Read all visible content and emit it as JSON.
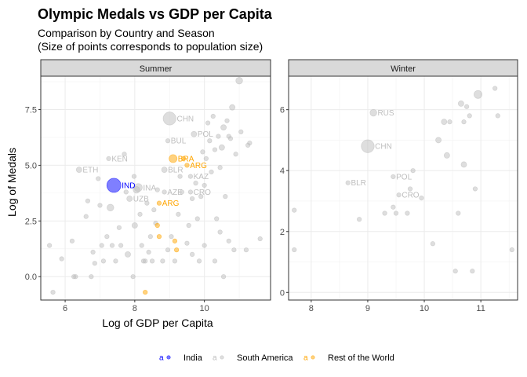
{
  "chart_data": {
    "type": "scatter",
    "title": "Olympic Medals vs GDP per Capita",
    "subtitle_lines": [
      "Comparison by Country and Season",
      "(Size of points corresponds to population size)"
    ],
    "xlabel": "Log of GDP per Capita",
    "ylabel": "Log of Medals",
    "legend_position": "bottom",
    "grid": true,
    "colors": {
      "India": "#0000ff",
      "South America": "#bebebe",
      "Rest of the World": "#ffa500"
    },
    "legend": [
      {
        "key": "a",
        "label": "India",
        "color": "#0000ff"
      },
      {
        "key": "a",
        "label": "South America",
        "color": "#bebebe"
      },
      {
        "key": "a",
        "label": "Rest of the World",
        "color": "#ffa500"
      }
    ],
    "panels": [
      {
        "name": "Summer",
        "xlim": [
          5.3,
          11.9
        ],
        "ylim": [
          -1.05,
          9.0
        ],
        "xticks": [
          6,
          8,
          10
        ],
        "yticks": [
          0.0,
          2.5,
          5.0,
          7.5
        ],
        "ytick_labels": [
          "0.0",
          "2.5",
          "5.0",
          "7.5"
        ],
        "points": [
          {
            "x": 5.65,
            "y": -0.7,
            "s": 2,
            "g": "South America"
          },
          {
            "x": 5.55,
            "y": 1.4,
            "s": 2,
            "g": "South America"
          },
          {
            "x": 5.9,
            "y": 0.8,
            "s": 2,
            "g": "South America"
          },
          {
            "x": 6.2,
            "y": 1.6,
            "s": 2,
            "g": "South America"
          },
          {
            "x": 6.25,
            "y": 0.0,
            "s": 2,
            "g": "South America"
          },
          {
            "x": 6.3,
            "y": 0.0,
            "s": 2,
            "g": "South America"
          },
          {
            "x": 6.4,
            "y": 4.8,
            "s": 3,
            "g": "South America",
            "label": "ETH"
          },
          {
            "x": 6.6,
            "y": 2.7,
            "s": 2,
            "g": "South America"
          },
          {
            "x": 6.65,
            "y": 3.4,
            "s": 2,
            "g": "South America"
          },
          {
            "x": 6.75,
            "y": 0.0,
            "s": 2,
            "g": "South America"
          },
          {
            "x": 6.8,
            "y": 1.1,
            "s": 2,
            "g": "South America"
          },
          {
            "x": 6.85,
            "y": 0.6,
            "s": 2,
            "g": "South America"
          },
          {
            "x": 6.95,
            "y": 4.4,
            "s": 2,
            "g": "South America"
          },
          {
            "x": 7.0,
            "y": 3.2,
            "s": 2,
            "g": "South America"
          },
          {
            "x": 7.05,
            "y": 1.4,
            "s": 2,
            "g": "South America"
          },
          {
            "x": 7.1,
            "y": 0.7,
            "s": 2,
            "g": "South America"
          },
          {
            "x": 7.2,
            "y": 1.8,
            "s": 2,
            "g": "South America"
          },
          {
            "x": 7.25,
            "y": 5.3,
            "s": 2,
            "g": "South America",
            "label": "KEN"
          },
          {
            "x": 7.3,
            "y": 3.1,
            "s": 4,
            "g": "South America"
          },
          {
            "x": 7.35,
            "y": 1.4,
            "s": 2,
            "g": "South America"
          },
          {
            "x": 7.4,
            "y": 4.1,
            "s": 10,
            "g": "India",
            "label": "IND"
          },
          {
            "x": 7.45,
            "y": 0.7,
            "s": 2,
            "g": "South America"
          },
          {
            "x": 7.55,
            "y": 2.2,
            "s": 2,
            "g": "South America"
          },
          {
            "x": 7.6,
            "y": 1.4,
            "s": 2,
            "g": "South America"
          },
          {
            "x": 7.7,
            "y": 5.5,
            "s": 2,
            "g": "South America"
          },
          {
            "x": 7.75,
            "y": 3.8,
            "s": 2,
            "g": "South America"
          },
          {
            "x": 7.8,
            "y": 1.0,
            "s": 3,
            "g": "South America"
          },
          {
            "x": 7.85,
            "y": 3.5,
            "s": 3,
            "g": "South America",
            "label": "UZB"
          },
          {
            "x": 7.95,
            "y": 0.0,
            "s": 2,
            "g": "South America"
          },
          {
            "x": 7.98,
            "y": 4.5,
            "s": 2,
            "g": "South America"
          },
          {
            "x": 8.0,
            "y": 2.3,
            "s": 3,
            "g": "South America"
          },
          {
            "x": 8.05,
            "y": 3.9,
            "s": 4,
            "g": "South America"
          },
          {
            "x": 8.1,
            "y": 4.0,
            "s": 5,
            "g": "South America",
            "label": "INA"
          },
          {
            "x": 8.15,
            "y": 2.8,
            "s": 2,
            "g": "South America"
          },
          {
            "x": 8.2,
            "y": 1.4,
            "s": 2,
            "g": "South America"
          },
          {
            "x": 8.25,
            "y": 0.7,
            "s": 2,
            "g": "South America"
          },
          {
            "x": 8.3,
            "y": -0.7,
            "s": 2,
            "g": "Rest of the World"
          },
          {
            "x": 8.3,
            "y": 0.7,
            "s": 2,
            "g": "South America"
          },
          {
            "x": 8.35,
            "y": 3.3,
            "s": 2,
            "g": "South America"
          },
          {
            "x": 8.4,
            "y": 1.1,
            "s": 2,
            "g": "South America"
          },
          {
            "x": 8.45,
            "y": 1.8,
            "s": 2,
            "g": "South America"
          },
          {
            "x": 8.5,
            "y": 0.7,
            "s": 2,
            "g": "South America"
          },
          {
            "x": 8.55,
            "y": 3.0,
            "s": 2,
            "g": "South America"
          },
          {
            "x": 8.6,
            "y": 2.4,
            "s": 2,
            "g": "South America"
          },
          {
            "x": 8.65,
            "y": 3.9,
            "s": 2,
            "g": "South America"
          },
          {
            "x": 8.65,
            "y": 2.3,
            "s": 2,
            "g": "Rest of the World"
          },
          {
            "x": 8.7,
            "y": 3.3,
            "s": 2,
            "g": "Rest of the World",
            "label": "ARG"
          },
          {
            "x": 8.7,
            "y": 1.8,
            "s": 2,
            "g": "Rest of the World"
          },
          {
            "x": 8.8,
            "y": 0.7,
            "s": 2,
            "g": "South America"
          },
          {
            "x": 8.85,
            "y": 3.8,
            "s": 2,
            "g": "South America",
            "label": "AZE"
          },
          {
            "x": 8.85,
            "y": 4.8,
            "s": 3,
            "g": "South America",
            "label": "BLR"
          },
          {
            "x": 8.95,
            "y": 1.2,
            "s": 2,
            "g": "South America"
          },
          {
            "x": 8.95,
            "y": 6.1,
            "s": 2,
            "g": "South America",
            "label": "BUL"
          },
          {
            "x": 9.0,
            "y": 7.1,
            "s": 9,
            "g": "South America",
            "label": "CHN"
          },
          {
            "x": 9.05,
            "y": 1.8,
            "s": 2,
            "g": "South America"
          },
          {
            "x": 9.1,
            "y": 5.3,
            "s": 5,
            "g": "Rest of the World",
            "label": "BRA"
          },
          {
            "x": 9.15,
            "y": 1.6,
            "s": 2,
            "g": "Rest of the World"
          },
          {
            "x": 9.15,
            "y": 0.7,
            "s": 2,
            "g": "South America"
          },
          {
            "x": 9.2,
            "y": 1.2,
            "s": 2,
            "g": "Rest of the World"
          },
          {
            "x": 9.25,
            "y": 2.8,
            "s": 2,
            "g": "South America"
          },
          {
            "x": 9.3,
            "y": 4.5,
            "s": 2,
            "g": "South America"
          },
          {
            "x": 9.35,
            "y": 3.8,
            "s": 2,
            "g": "South America"
          },
          {
            "x": 9.4,
            "y": 5.3,
            "s": 2,
            "g": "Rest of the World"
          },
          {
            "x": 9.5,
            "y": 5.0,
            "s": 2,
            "g": "Rest of the World",
            "label": "ARG"
          },
          {
            "x": 9.5,
            "y": 1.5,
            "s": 2,
            "g": "South America"
          },
          {
            "x": 9.55,
            "y": 2.3,
            "s": 2,
            "g": "South America"
          },
          {
            "x": 9.6,
            "y": 3.8,
            "s": 2,
            "g": "South America",
            "label": "CRO"
          },
          {
            "x": 9.6,
            "y": 4.5,
            "s": 2,
            "g": "South America",
            "label": "KAZ"
          },
          {
            "x": 9.65,
            "y": 3.5,
            "s": 2,
            "g": "South America"
          },
          {
            "x": 9.65,
            "y": 1.0,
            "s": 2,
            "g": "South America"
          },
          {
            "x": 9.7,
            "y": 6.4,
            "s": 3,
            "g": "South America",
            "label": "POL"
          },
          {
            "x": 9.75,
            "y": 4.2,
            "s": 2,
            "g": "South America"
          },
          {
            "x": 9.8,
            "y": 2.6,
            "s": 2,
            "g": "South America"
          },
          {
            "x": 9.85,
            "y": 0.7,
            "s": 2,
            "g": "South America"
          },
          {
            "x": 9.9,
            "y": 3.6,
            "s": 2,
            "g": "South America"
          },
          {
            "x": 9.95,
            "y": 5.6,
            "s": 2,
            "g": "South America"
          },
          {
            "x": 10.0,
            "y": 1.4,
            "s": 2,
            "g": "South America"
          },
          {
            "x": 10.0,
            "y": 4.1,
            "s": 2,
            "g": "South America"
          },
          {
            "x": 10.05,
            "y": 5.3,
            "s": 2,
            "g": "South America"
          },
          {
            "x": 10.1,
            "y": 6.9,
            "s": 2,
            "g": "South America"
          },
          {
            "x": 10.15,
            "y": 6.1,
            "s": 2,
            "g": "South America"
          },
          {
            "x": 10.2,
            "y": 4.7,
            "s": 2,
            "g": "South America"
          },
          {
            "x": 10.25,
            "y": 7.2,
            "s": 2,
            "g": "South America"
          },
          {
            "x": 10.3,
            "y": 5.7,
            "s": 2,
            "g": "South America"
          },
          {
            "x": 10.3,
            "y": 0.7,
            "s": 2,
            "g": "South America"
          },
          {
            "x": 10.35,
            "y": 2.6,
            "s": 2,
            "g": "South America"
          },
          {
            "x": 10.4,
            "y": 6.3,
            "s": 2,
            "g": "South America"
          },
          {
            "x": 10.45,
            "y": 4.9,
            "s": 2,
            "g": "South America"
          },
          {
            "x": 10.45,
            "y": 2.0,
            "s": 2,
            "g": "South America"
          },
          {
            "x": 10.5,
            "y": 5.8,
            "s": 3,
            "g": "South America"
          },
          {
            "x": 10.55,
            "y": 6.7,
            "s": 3,
            "g": "South America"
          },
          {
            "x": 10.55,
            "y": 0.0,
            "s": 2,
            "g": "South America"
          },
          {
            "x": 10.6,
            "y": 3.6,
            "s": 2,
            "g": "South America"
          },
          {
            "x": 10.65,
            "y": 7.0,
            "s": 2,
            "g": "South America"
          },
          {
            "x": 10.7,
            "y": 6.3,
            "s": 2,
            "g": "South America"
          },
          {
            "x": 10.7,
            "y": 1.6,
            "s": 2,
            "g": "South America"
          },
          {
            "x": 10.75,
            "y": 6.2,
            "s": 2,
            "g": "South America"
          },
          {
            "x": 10.8,
            "y": 7.6,
            "s": 3,
            "g": "South America"
          },
          {
            "x": 10.85,
            "y": 1.2,
            "s": 2,
            "g": "South America"
          },
          {
            "x": 10.9,
            "y": 5.5,
            "s": 2,
            "g": "South America"
          },
          {
            "x": 11.0,
            "y": 8.8,
            "s": 4,
            "g": "South America"
          },
          {
            "x": 11.05,
            "y": 6.5,
            "s": 2,
            "g": "South America"
          },
          {
            "x": 11.2,
            "y": 1.2,
            "s": 2,
            "g": "South America"
          },
          {
            "x": 11.25,
            "y": 5.9,
            "s": 2,
            "g": "South America"
          },
          {
            "x": 11.3,
            "y": 6.0,
            "s": 2,
            "g": "South America"
          },
          {
            "x": 11.6,
            "y": 1.7,
            "s": 2,
            "g": "South America"
          }
        ]
      },
      {
        "name": "Winter",
        "xlim": [
          7.6,
          11.65
        ],
        "ylim": [
          -0.25,
          7.1
        ],
        "xticks": [
          8,
          9,
          10,
          11
        ],
        "yticks": [
          0,
          2,
          4,
          6
        ],
        "ytick_labels": [
          "0",
          "2",
          "4",
          "6"
        ],
        "points": [
          {
            "x": 7.7,
            "y": 2.7,
            "s": 2,
            "g": "South America"
          },
          {
            "x": 7.7,
            "y": 1.4,
            "s": 2,
            "g": "South America"
          },
          {
            "x": 8.65,
            "y": 3.6,
            "s": 2,
            "g": "South America",
            "label": "BLR"
          },
          {
            "x": 8.85,
            "y": 2.4,
            "s": 2,
            "g": "South America"
          },
          {
            "x": 9.0,
            "y": 4.8,
            "s": 9,
            "g": "South America",
            "label": "CHN"
          },
          {
            "x": 9.1,
            "y": 5.9,
            "s": 4,
            "g": "South America",
            "label": "RUS"
          },
          {
            "x": 9.3,
            "y": 2.6,
            "s": 2,
            "g": "South America"
          },
          {
            "x": 9.45,
            "y": 2.8,
            "s": 2,
            "g": "South America"
          },
          {
            "x": 9.45,
            "y": 3.8,
            "s": 2,
            "g": "South America",
            "label": "POL"
          },
          {
            "x": 9.5,
            "y": 2.6,
            "s": 2,
            "g": "South America"
          },
          {
            "x": 9.55,
            "y": 3.2,
            "s": 2,
            "g": "South America",
            "label": "CRO"
          },
          {
            "x": 9.7,
            "y": 2.6,
            "s": 2,
            "g": "South America"
          },
          {
            "x": 9.75,
            "y": 3.4,
            "s": 2,
            "g": "South America"
          },
          {
            "x": 9.8,
            "y": 4.0,
            "s": 2,
            "g": "South America"
          },
          {
            "x": 9.95,
            "y": 3.1,
            "s": 2,
            "g": "South America"
          },
          {
            "x": 10.15,
            "y": 1.6,
            "s": 2,
            "g": "South America"
          },
          {
            "x": 10.25,
            "y": 5.0,
            "s": 3,
            "g": "South America"
          },
          {
            "x": 10.35,
            "y": 5.6,
            "s": 3,
            "g": "South America"
          },
          {
            "x": 10.4,
            "y": 4.5,
            "s": 3,
            "g": "South America"
          },
          {
            "x": 10.45,
            "y": 5.6,
            "s": 2,
            "g": "South America"
          },
          {
            "x": 10.55,
            "y": 0.7,
            "s": 2,
            "g": "South America"
          },
          {
            "x": 10.6,
            "y": 2.6,
            "s": 2,
            "g": "South America"
          },
          {
            "x": 10.65,
            "y": 6.2,
            "s": 3,
            "g": "South America"
          },
          {
            "x": 10.7,
            "y": 4.2,
            "s": 3,
            "g": "South America"
          },
          {
            "x": 10.7,
            "y": 5.6,
            "s": 2,
            "g": "South America"
          },
          {
            "x": 10.75,
            "y": 6.1,
            "s": 2,
            "g": "South America"
          },
          {
            "x": 10.8,
            "y": 5.8,
            "s": 2,
            "g": "South America"
          },
          {
            "x": 10.85,
            "y": 0.7,
            "s": 2,
            "g": "South America"
          },
          {
            "x": 10.9,
            "y": 3.4,
            "s": 2,
            "g": "South America"
          },
          {
            "x": 10.95,
            "y": 6.5,
            "s": 5,
            "g": "South America"
          },
          {
            "x": 11.25,
            "y": 6.7,
            "s": 2,
            "g": "South America"
          },
          {
            "x": 11.3,
            "y": 5.8,
            "s": 2,
            "g": "South America"
          },
          {
            "x": 11.55,
            "y": 1.4,
            "s": 2,
            "g": "South America"
          }
        ]
      }
    ]
  }
}
